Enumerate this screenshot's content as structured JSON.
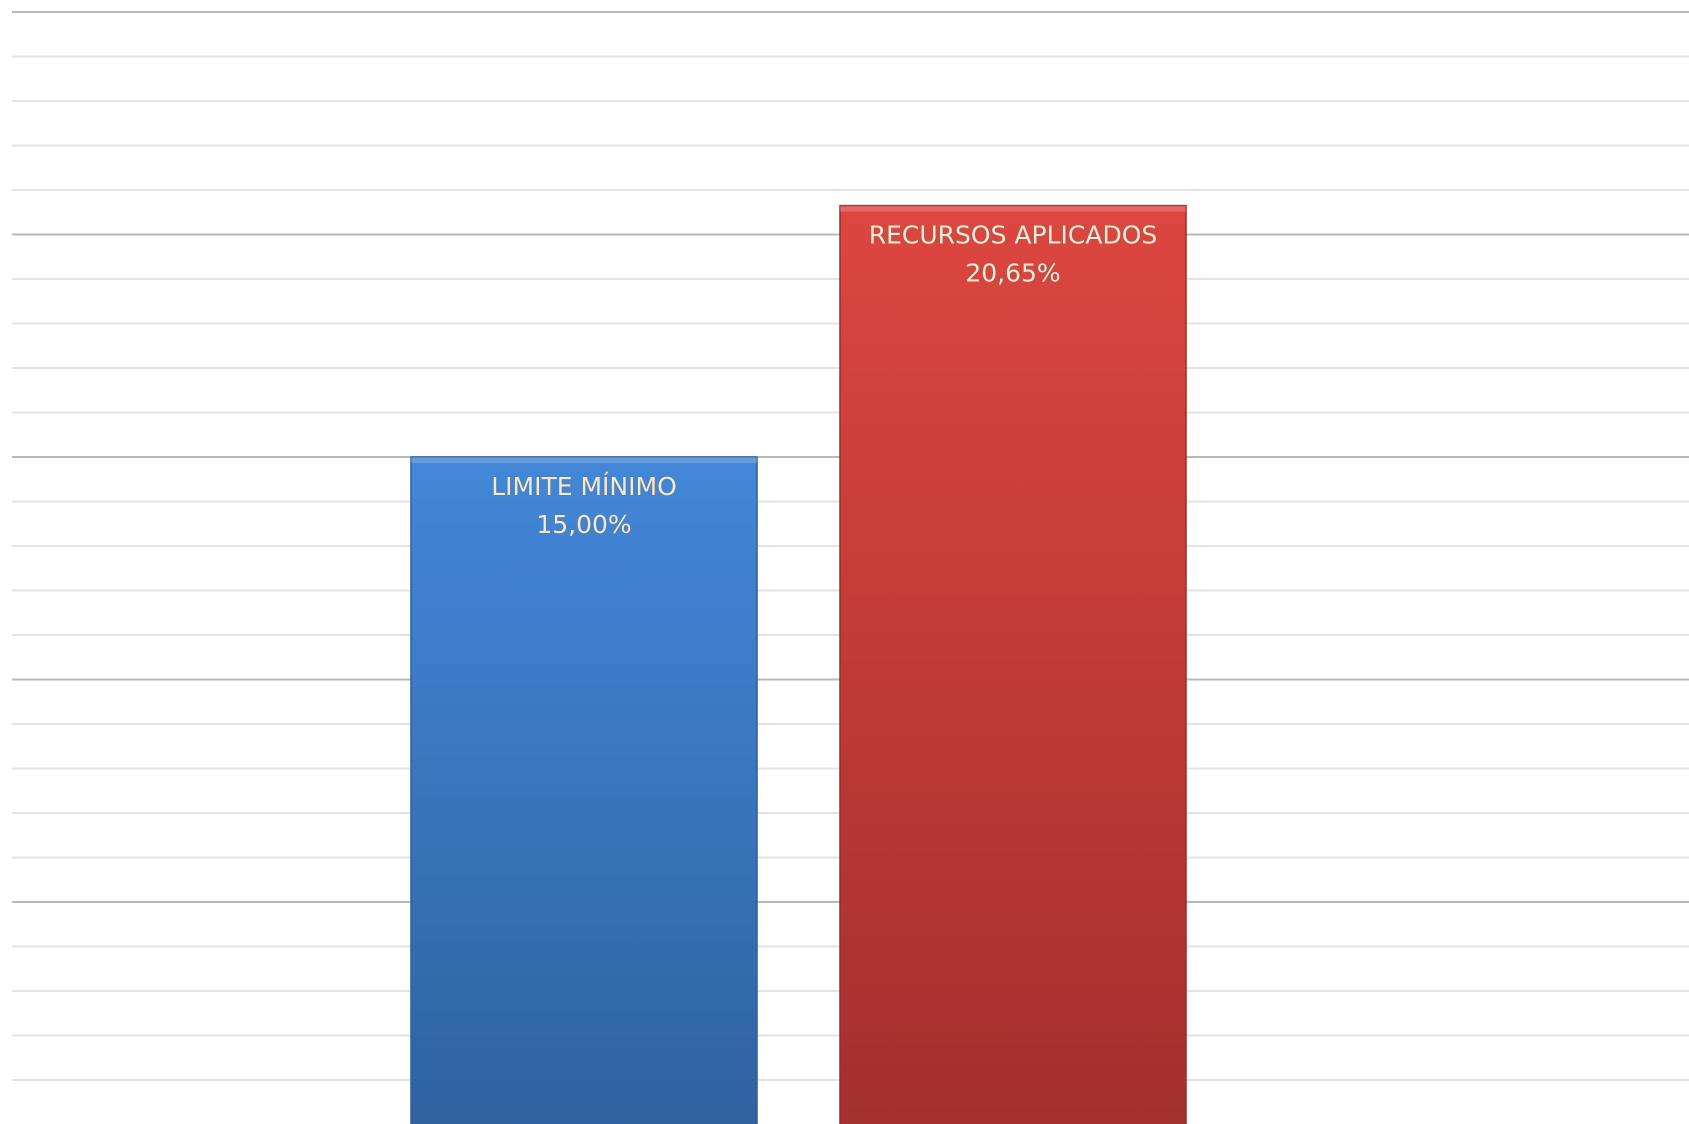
{
  "chart_data": {
    "type": "bar",
    "categories": [
      "LIMITE MÍNIMO",
      "RECURSOS APLICADOS"
    ],
    "values": [
      15.0,
      20.65
    ],
    "value_labels": [
      "15,00%",
      "20,65%"
    ],
    "unit": "%",
    "colors": [
      "#3f80cf",
      "#c83c38"
    ],
    "ylim": [
      0,
      25
    ],
    "grid": true,
    "legend": "none",
    "title": "",
    "xlabel": "",
    "ylabel": ""
  }
}
